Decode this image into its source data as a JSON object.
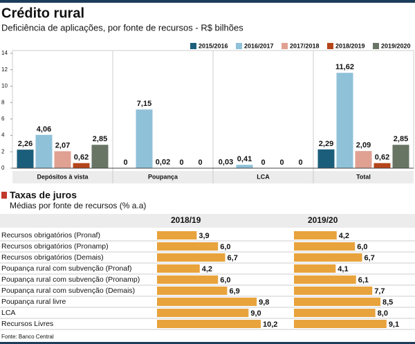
{
  "source": "Fonte: Banco Central",
  "chart_data": [
    {
      "type": "bar",
      "title": "Crédito rural",
      "subtitle": "Deficiência de aplicações, por fonte de recursos - R$ bilhões",
      "categories": [
        "Depósitos à vista",
        "Poupança",
        "LCA",
        "Total"
      ],
      "series": [
        {
          "name": "2015/2016",
          "color": "#1b5e7b",
          "values": [
            2.26,
            0,
            0.03,
            2.29
          ],
          "value_labels": [
            "2,26",
            "0",
            "0,03",
            "2,29"
          ]
        },
        {
          "name": "2016/2017",
          "color": "#8fc1d9",
          "values": [
            4.06,
            7.15,
            0.41,
            11.62
          ],
          "value_labels": [
            "4,06",
            "7,15",
            "0,41",
            "11,62"
          ]
        },
        {
          "name": "2017/2018",
          "color": "#e0a092",
          "values": [
            2.07,
            0.02,
            0,
            2.09
          ],
          "value_labels": [
            "2,07",
            "0,02",
            "0",
            "2,09"
          ]
        },
        {
          "name": "2018/2019",
          "color": "#b5451b",
          "values": [
            0.62,
            0,
            0,
            0.62
          ],
          "value_labels": [
            "0,62",
            "0",
            "0",
            "0,62"
          ]
        },
        {
          "name": "2019/2020",
          "color": "#687565",
          "values": [
            2.85,
            0,
            0,
            2.85
          ],
          "value_labels": [
            "2,85",
            "0",
            "0",
            "2,85"
          ]
        }
      ],
      "ylim": [
        0,
        14
      ],
      "yticks": [
        0,
        2,
        4,
        6,
        8,
        10,
        12,
        14
      ],
      "grid": false
    },
    {
      "type": "hbar",
      "title": "Taxas de juros",
      "subtitle": "Médias por fonte de recursos (% a.a)",
      "categories": [
        "Recursos obrigatórios (Pronaf)",
        "Recursos obrigatórios (Pronamp)",
        "Recursos obrigatórios (Demais)",
        "Poupança rural com subvenção (Pronaf)",
        "Poupança rural com subvenção (Pronamp)",
        "Poupança rural com subvenção (Demais)",
        "Poupança rural livre",
        "LCA",
        "Recursos Livres"
      ],
      "series": [
        {
          "name": "2018/19",
          "color": "#e8a33d",
          "values": [
            3.9,
            6.0,
            6.7,
            4.2,
            6.0,
            6.9,
            9.8,
            9.0,
            10.2
          ],
          "value_labels": [
            "3,9",
            "6,0",
            "6,7",
            "4,2",
            "6,0",
            "6,9",
            "9,8",
            "9,0",
            "10,2"
          ]
        },
        {
          "name": "2019/20",
          "color": "#e8a33d",
          "values": [
            4.2,
            6.0,
            6.7,
            4.1,
            6.1,
            7.7,
            8.5,
            8.0,
            9.1
          ],
          "value_labels": [
            "4,2",
            "6,0",
            "6,7",
            "4,1",
            "6,1",
            "7,7",
            "8,5",
            "8,0",
            "9,1"
          ]
        }
      ]
    }
  ]
}
